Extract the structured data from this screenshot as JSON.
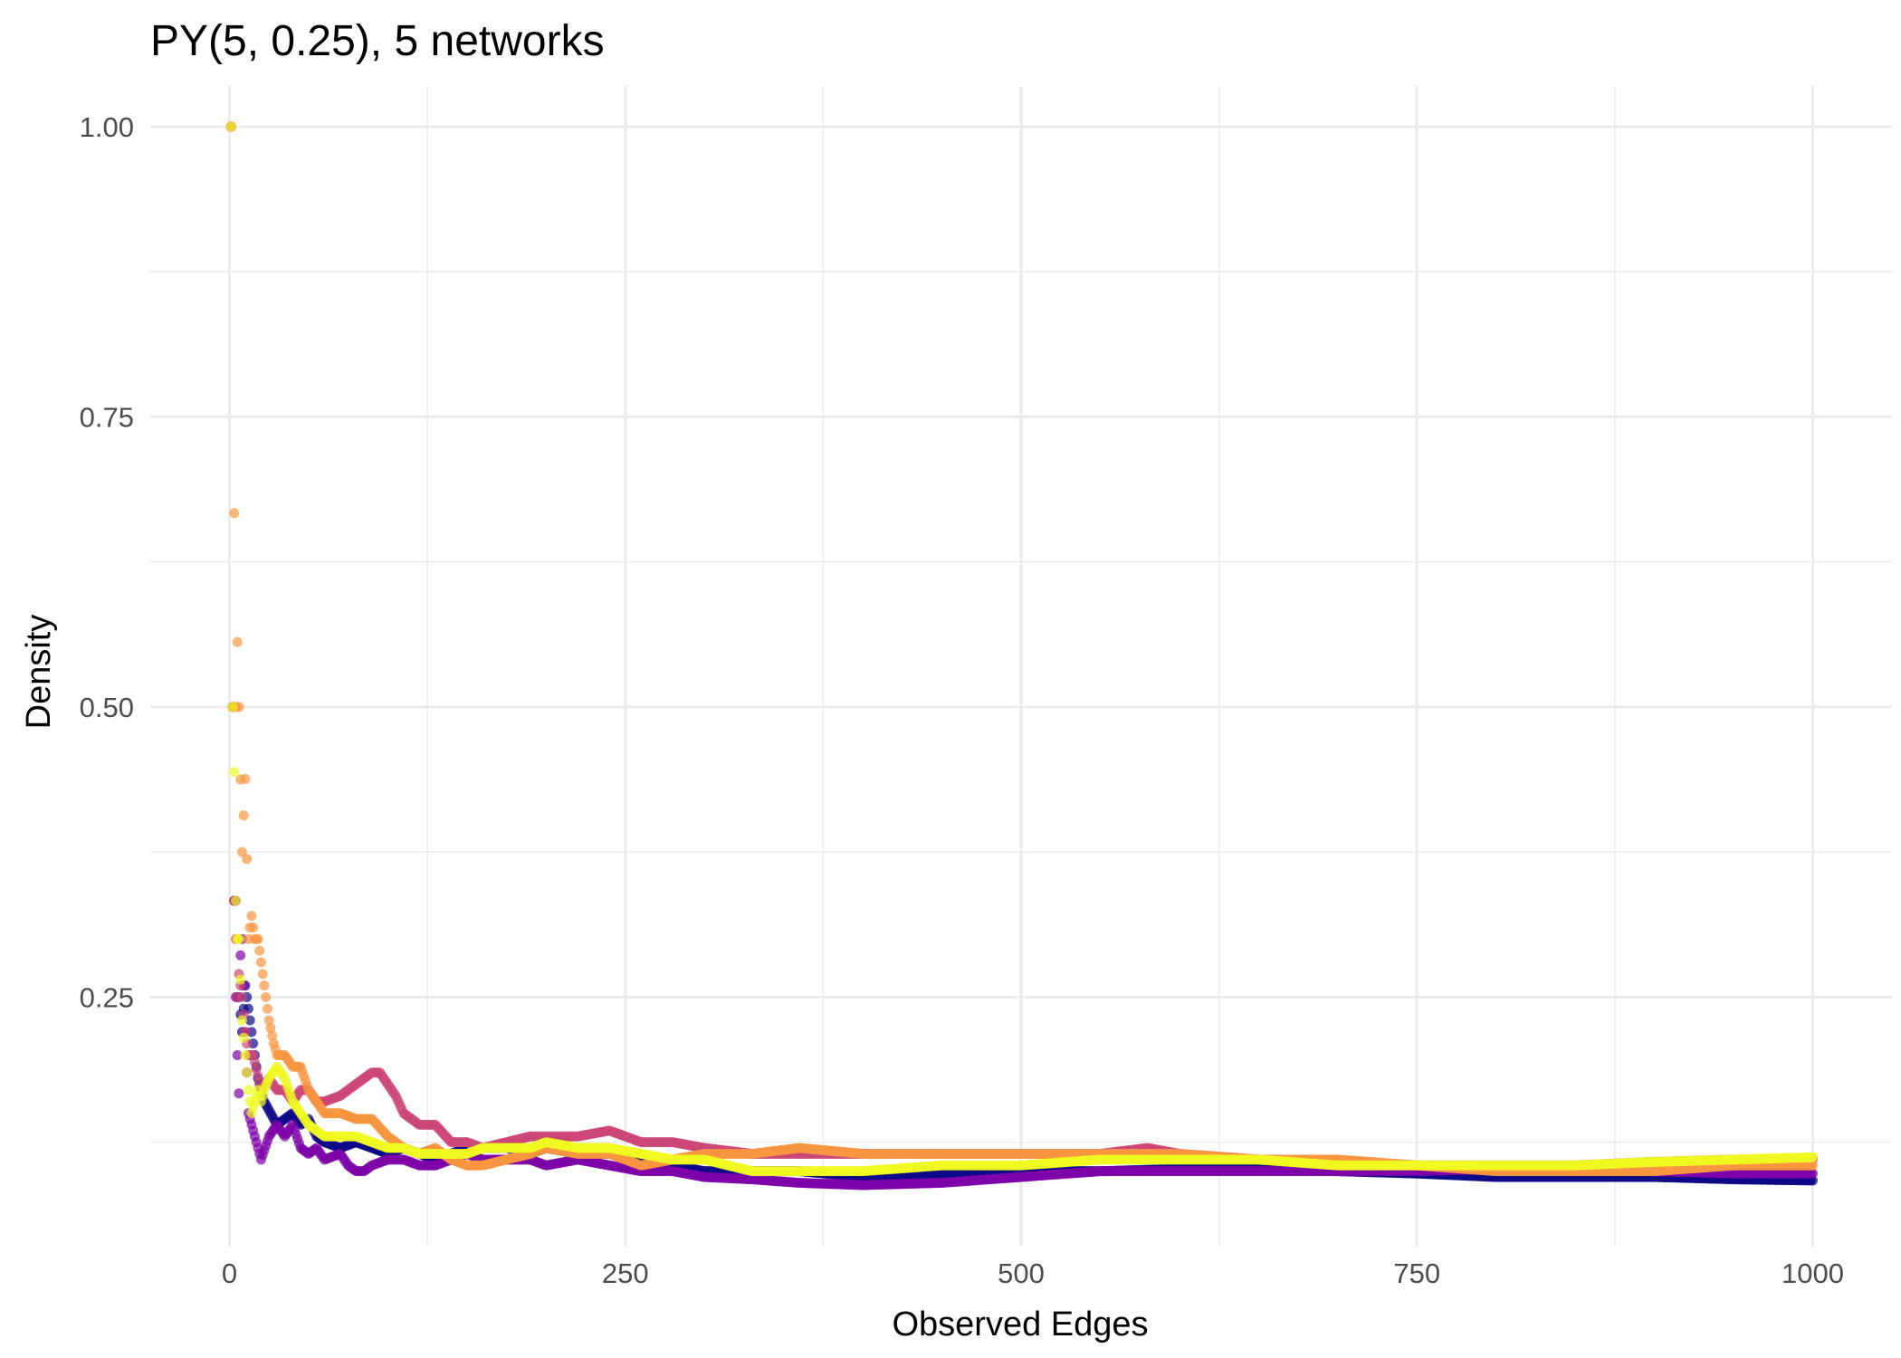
{
  "chart_data": {
    "type": "scatter",
    "title": "PY(5, 0.25), 5 networks",
    "xlabel": "Observed Edges",
    "ylabel": "Density",
    "xlim": [
      -50,
      1050
    ],
    "ylim": [
      0.035,
      1.035
    ],
    "x_ticks": [
      0,
      250,
      500,
      750,
      1000
    ],
    "x_tick_labels": [
      "0",
      "250",
      "500",
      "750",
      "1000"
    ],
    "y_ticks": [
      0.25,
      0.5,
      0.75,
      1.0
    ],
    "y_tick_labels": [
      "0.25",
      "0.50",
      "0.75",
      "1.00"
    ],
    "grid": true,
    "legend": "none",
    "series": [
      {
        "color": "#0d0887",
        "x": [
          1,
          2,
          3,
          4,
          5,
          6,
          8,
          10,
          12,
          15,
          18,
          22,
          26,
          30,
          35,
          40,
          45,
          50,
          55,
          60,
          70,
          80,
          90,
          100,
          110,
          120,
          130,
          140,
          150,
          160,
          175,
          190,
          200,
          220,
          240,
          260,
          280,
          300,
          330,
          360,
          400,
          450,
          500,
          550,
          600,
          650,
          700,
          750,
          800,
          850,
          900,
          950,
          1000
        ],
        "y": [
          1.0,
          0.5,
          0.333,
          0.333,
          0.25,
          0.25,
          0.22,
          0.26,
          0.24,
          0.21,
          0.18,
          0.16,
          0.15,
          0.14,
          0.145,
          0.15,
          0.14,
          0.145,
          0.13,
          0.125,
          0.12,
          0.125,
          0.12,
          0.115,
          0.12,
          0.115,
          0.11,
          0.115,
          0.12,
          0.12,
          0.12,
          0.115,
          0.12,
          0.115,
          0.115,
          0.11,
          0.105,
          0.1,
          0.1,
          0.1,
          0.095,
          0.098,
          0.1,
          0.1,
          0.102,
          0.103,
          0.1,
          0.098,
          0.095,
          0.095,
          0.095,
          0.093,
          0.092
        ]
      },
      {
        "color": "#7e03a8",
        "x": [
          1,
          2,
          3,
          4,
          5,
          6,
          7,
          8,
          10,
          12,
          14,
          16,
          18,
          20,
          25,
          30,
          35,
          40,
          45,
          50,
          55,
          60,
          70,
          75,
          80,
          85,
          90,
          100,
          110,
          120,
          130,
          140,
          150,
          160,
          175,
          190,
          200,
          220,
          240,
          260,
          280,
          300,
          330,
          360,
          400,
          450,
          500,
          550,
          600,
          650,
          700,
          750,
          800,
          850,
          900,
          950,
          1000
        ],
        "y": [
          1.0,
          0.5,
          0.333,
          0.25,
          0.2,
          0.167,
          0.286,
          0.3,
          0.22,
          0.15,
          0.14,
          0.13,
          0.12,
          0.11,
          0.13,
          0.14,
          0.13,
          0.14,
          0.12,
          0.115,
          0.12,
          0.11,
          0.115,
          0.105,
          0.1,
          0.1,
          0.105,
          0.11,
          0.11,
          0.105,
          0.105,
          0.11,
          0.115,
          0.11,
          0.11,
          0.11,
          0.105,
          0.11,
          0.105,
          0.1,
          0.1,
          0.095,
          0.093,
          0.09,
          0.088,
          0.09,
          0.095,
          0.1,
          0.1,
          0.1,
          0.1,
          0.1,
          0.102,
          0.1,
          0.1,
          0.098,
          0.098
        ]
      },
      {
        "color": "#cc4778",
        "x": [
          1,
          2,
          3,
          4,
          5,
          6,
          8,
          10,
          12,
          15,
          20,
          25,
          30,
          35,
          40,
          45,
          50,
          55,
          60,
          70,
          80,
          90,
          95,
          100,
          105,
          110,
          120,
          130,
          140,
          150,
          160,
          175,
          190,
          200,
          220,
          240,
          260,
          280,
          300,
          330,
          360,
          400,
          450,
          500,
          550,
          580,
          600,
          650,
          700,
          750,
          800,
          850,
          900,
          950,
          1000
        ],
        "y": [
          1.0,
          0.5,
          0.333,
          0.3,
          0.25,
          0.27,
          0.25,
          0.22,
          0.2,
          0.2,
          0.17,
          0.18,
          0.17,
          0.17,
          0.16,
          0.17,
          0.17,
          0.16,
          0.16,
          0.165,
          0.175,
          0.185,
          0.185,
          0.175,
          0.165,
          0.15,
          0.14,
          0.14,
          0.125,
          0.125,
          0.12,
          0.125,
          0.13,
          0.13,
          0.13,
          0.135,
          0.125,
          0.125,
          0.12,
          0.115,
          0.115,
          0.115,
          0.115,
          0.115,
          0.115,
          0.12,
          0.115,
          0.11,
          0.105,
          0.105,
          0.105,
          0.105,
          0.108,
          0.11,
          0.11
        ]
      },
      {
        "color": "#f89540",
        "x": [
          1,
          2,
          3,
          4,
          5,
          6,
          8,
          10,
          12,
          14,
          16,
          18,
          20,
          22,
          25,
          28,
          30,
          35,
          40,
          45,
          50,
          55,
          60,
          70,
          80,
          90,
          100,
          110,
          120,
          130,
          140,
          150,
          160,
          175,
          190,
          200,
          220,
          240,
          260,
          280,
          300,
          330,
          360,
          400,
          450,
          500,
          550,
          600,
          650,
          700,
          750,
          800,
          850,
          900,
          950,
          1000
        ],
        "y": [
          1.0,
          0.5,
          0.667,
          0.5,
          0.556,
          0.5,
          0.375,
          0.438,
          0.3,
          0.32,
          0.3,
          0.3,
          0.28,
          0.26,
          0.23,
          0.21,
          0.2,
          0.2,
          0.19,
          0.19,
          0.17,
          0.16,
          0.15,
          0.15,
          0.145,
          0.145,
          0.13,
          0.12,
          0.115,
          0.12,
          0.11,
          0.105,
          0.105,
          0.11,
          0.115,
          0.12,
          0.115,
          0.115,
          0.105,
          0.11,
          0.115,
          0.115,
          0.12,
          0.115,
          0.115,
          0.115,
          0.115,
          0.115,
          0.11,
          0.11,
          0.105,
          0.1,
          0.1,
          0.1,
          0.105,
          0.105
        ]
      },
      {
        "color": "#f0f921",
        "x": [
          1,
          2,
          3,
          4,
          5,
          6,
          8,
          10,
          12,
          14,
          16,
          18,
          20,
          22,
          25,
          30,
          35,
          40,
          45,
          50,
          55,
          60,
          70,
          80,
          90,
          100,
          110,
          120,
          130,
          140,
          150,
          160,
          175,
          190,
          200,
          220,
          240,
          260,
          280,
          300,
          330,
          360,
          400,
          450,
          500,
          550,
          600,
          650,
          700,
          750,
          800,
          850,
          900,
          950,
          1000
        ],
        "y": [
          1.0,
          0.5,
          0.444,
          0.333,
          0.3,
          0.3,
          0.23,
          0.2,
          0.17,
          0.15,
          0.16,
          0.17,
          0.16,
          0.17,
          0.18,
          0.19,
          0.18,
          0.16,
          0.15,
          0.14,
          0.135,
          0.13,
          0.13,
          0.13,
          0.125,
          0.12,
          0.12,
          0.115,
          0.115,
          0.115,
          0.115,
          0.12,
          0.12,
          0.12,
          0.125,
          0.12,
          0.12,
          0.115,
          0.11,
          0.11,
          0.1,
          0.1,
          0.1,
          0.105,
          0.105,
          0.11,
          0.11,
          0.11,
          0.105,
          0.105,
          0.105,
          0.105,
          0.108,
          0.11,
          0.112
        ]
      }
    ]
  }
}
